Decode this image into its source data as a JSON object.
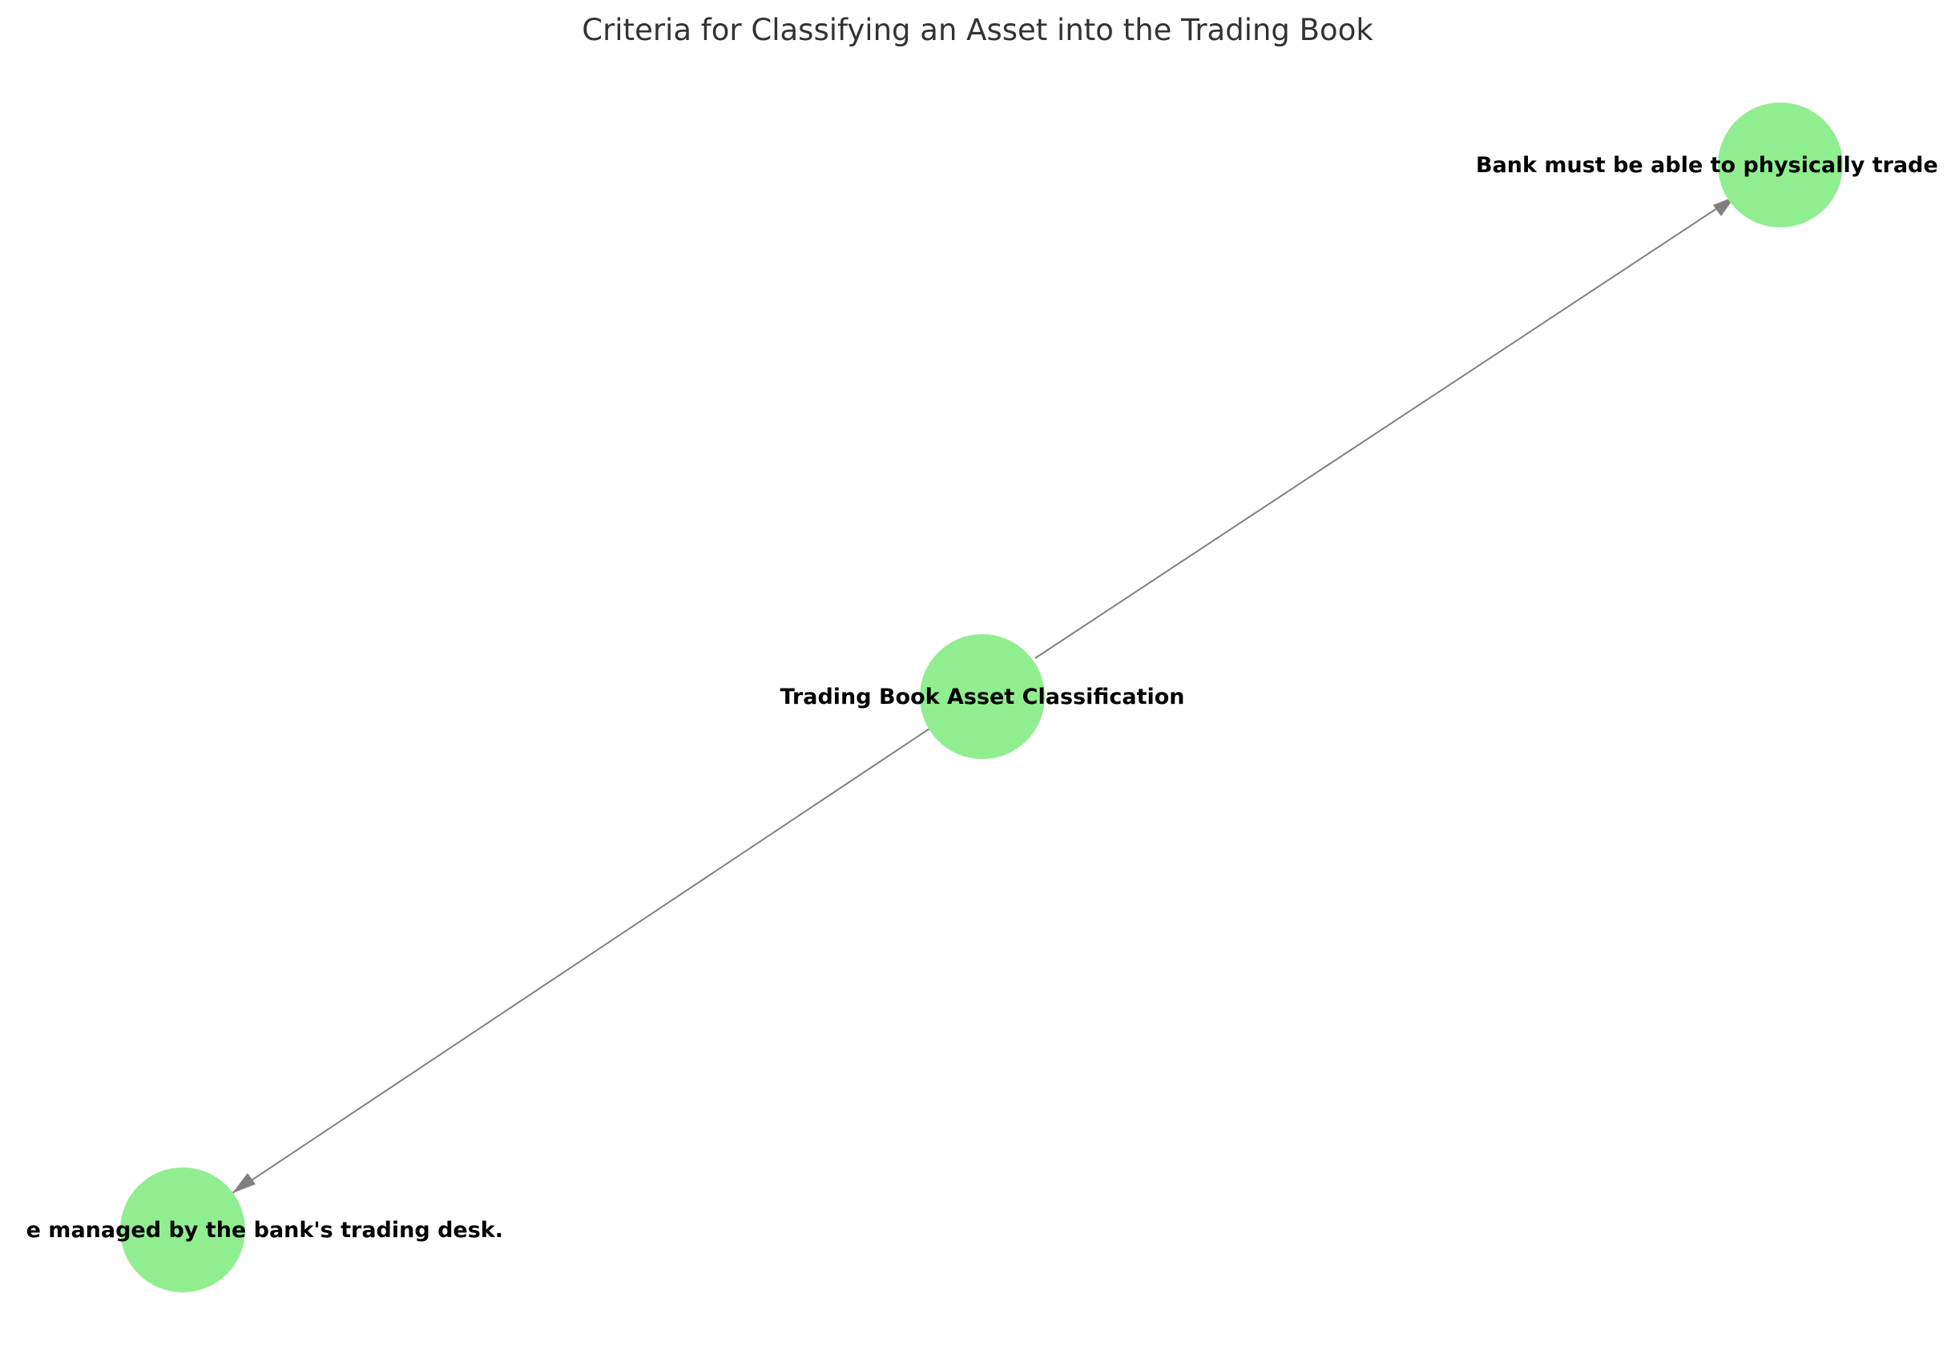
{
  "diagram": {
    "title": "Criteria for Classifying an Asset into the Trading Book",
    "node_color": "#90EE90",
    "edge_color": "#808080",
    "nodes": [
      {
        "id": "root",
        "label": "Trading Book Asset Classification"
      },
      {
        "id": "tradeable",
        "label": "Bank must be able to physically trade"
      },
      {
        "id": "managed",
        "label": "e managed by the bank's trading desk."
      }
    ],
    "edges": [
      {
        "from": "root",
        "to": "tradeable"
      },
      {
        "from": "root",
        "to": "managed"
      }
    ]
  }
}
